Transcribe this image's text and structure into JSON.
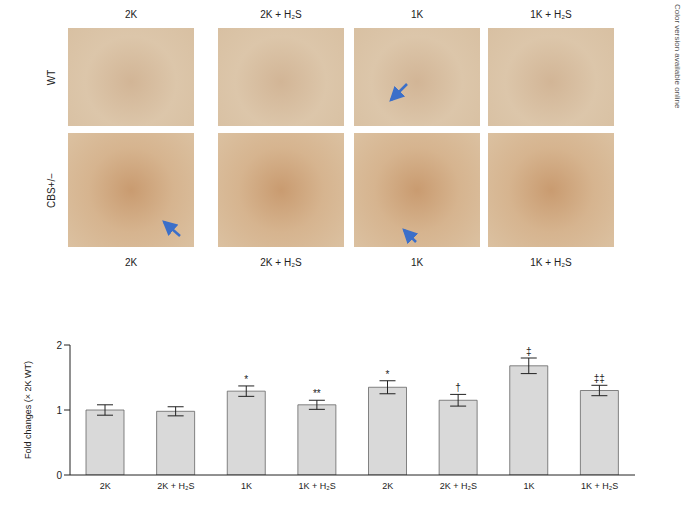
{
  "figure": {
    "column_labels": [
      "2K",
      "2K + H₂S",
      "1K",
      "1K + H₂S"
    ],
    "row_labels": [
      "WT",
      "CBS+/−"
    ],
    "side_note": "Color version available online"
  },
  "chart_data": {
    "type": "bar",
    "categories": [
      "2K",
      "2K + H₂S",
      "1K",
      "1K + H₂S",
      "2K",
      "2K + H₂S",
      "1K",
      "1K + H₂S"
    ],
    "values": [
      1.0,
      0.98,
      1.29,
      1.08,
      1.35,
      1.15,
      1.68,
      1.3
    ],
    "errors": [
      0.08,
      0.07,
      0.08,
      0.07,
      0.1,
      0.09,
      0.12,
      0.08
    ],
    "significance": [
      null,
      null,
      "*",
      "**",
      "*",
      "†",
      "‡",
      "‡‡"
    ],
    "color": "#d9d9d9",
    "y_label": "Fold changes (× 2K WT)",
    "ylim": [
      0,
      2
    ],
    "yticks": [
      0,
      1,
      2
    ]
  }
}
